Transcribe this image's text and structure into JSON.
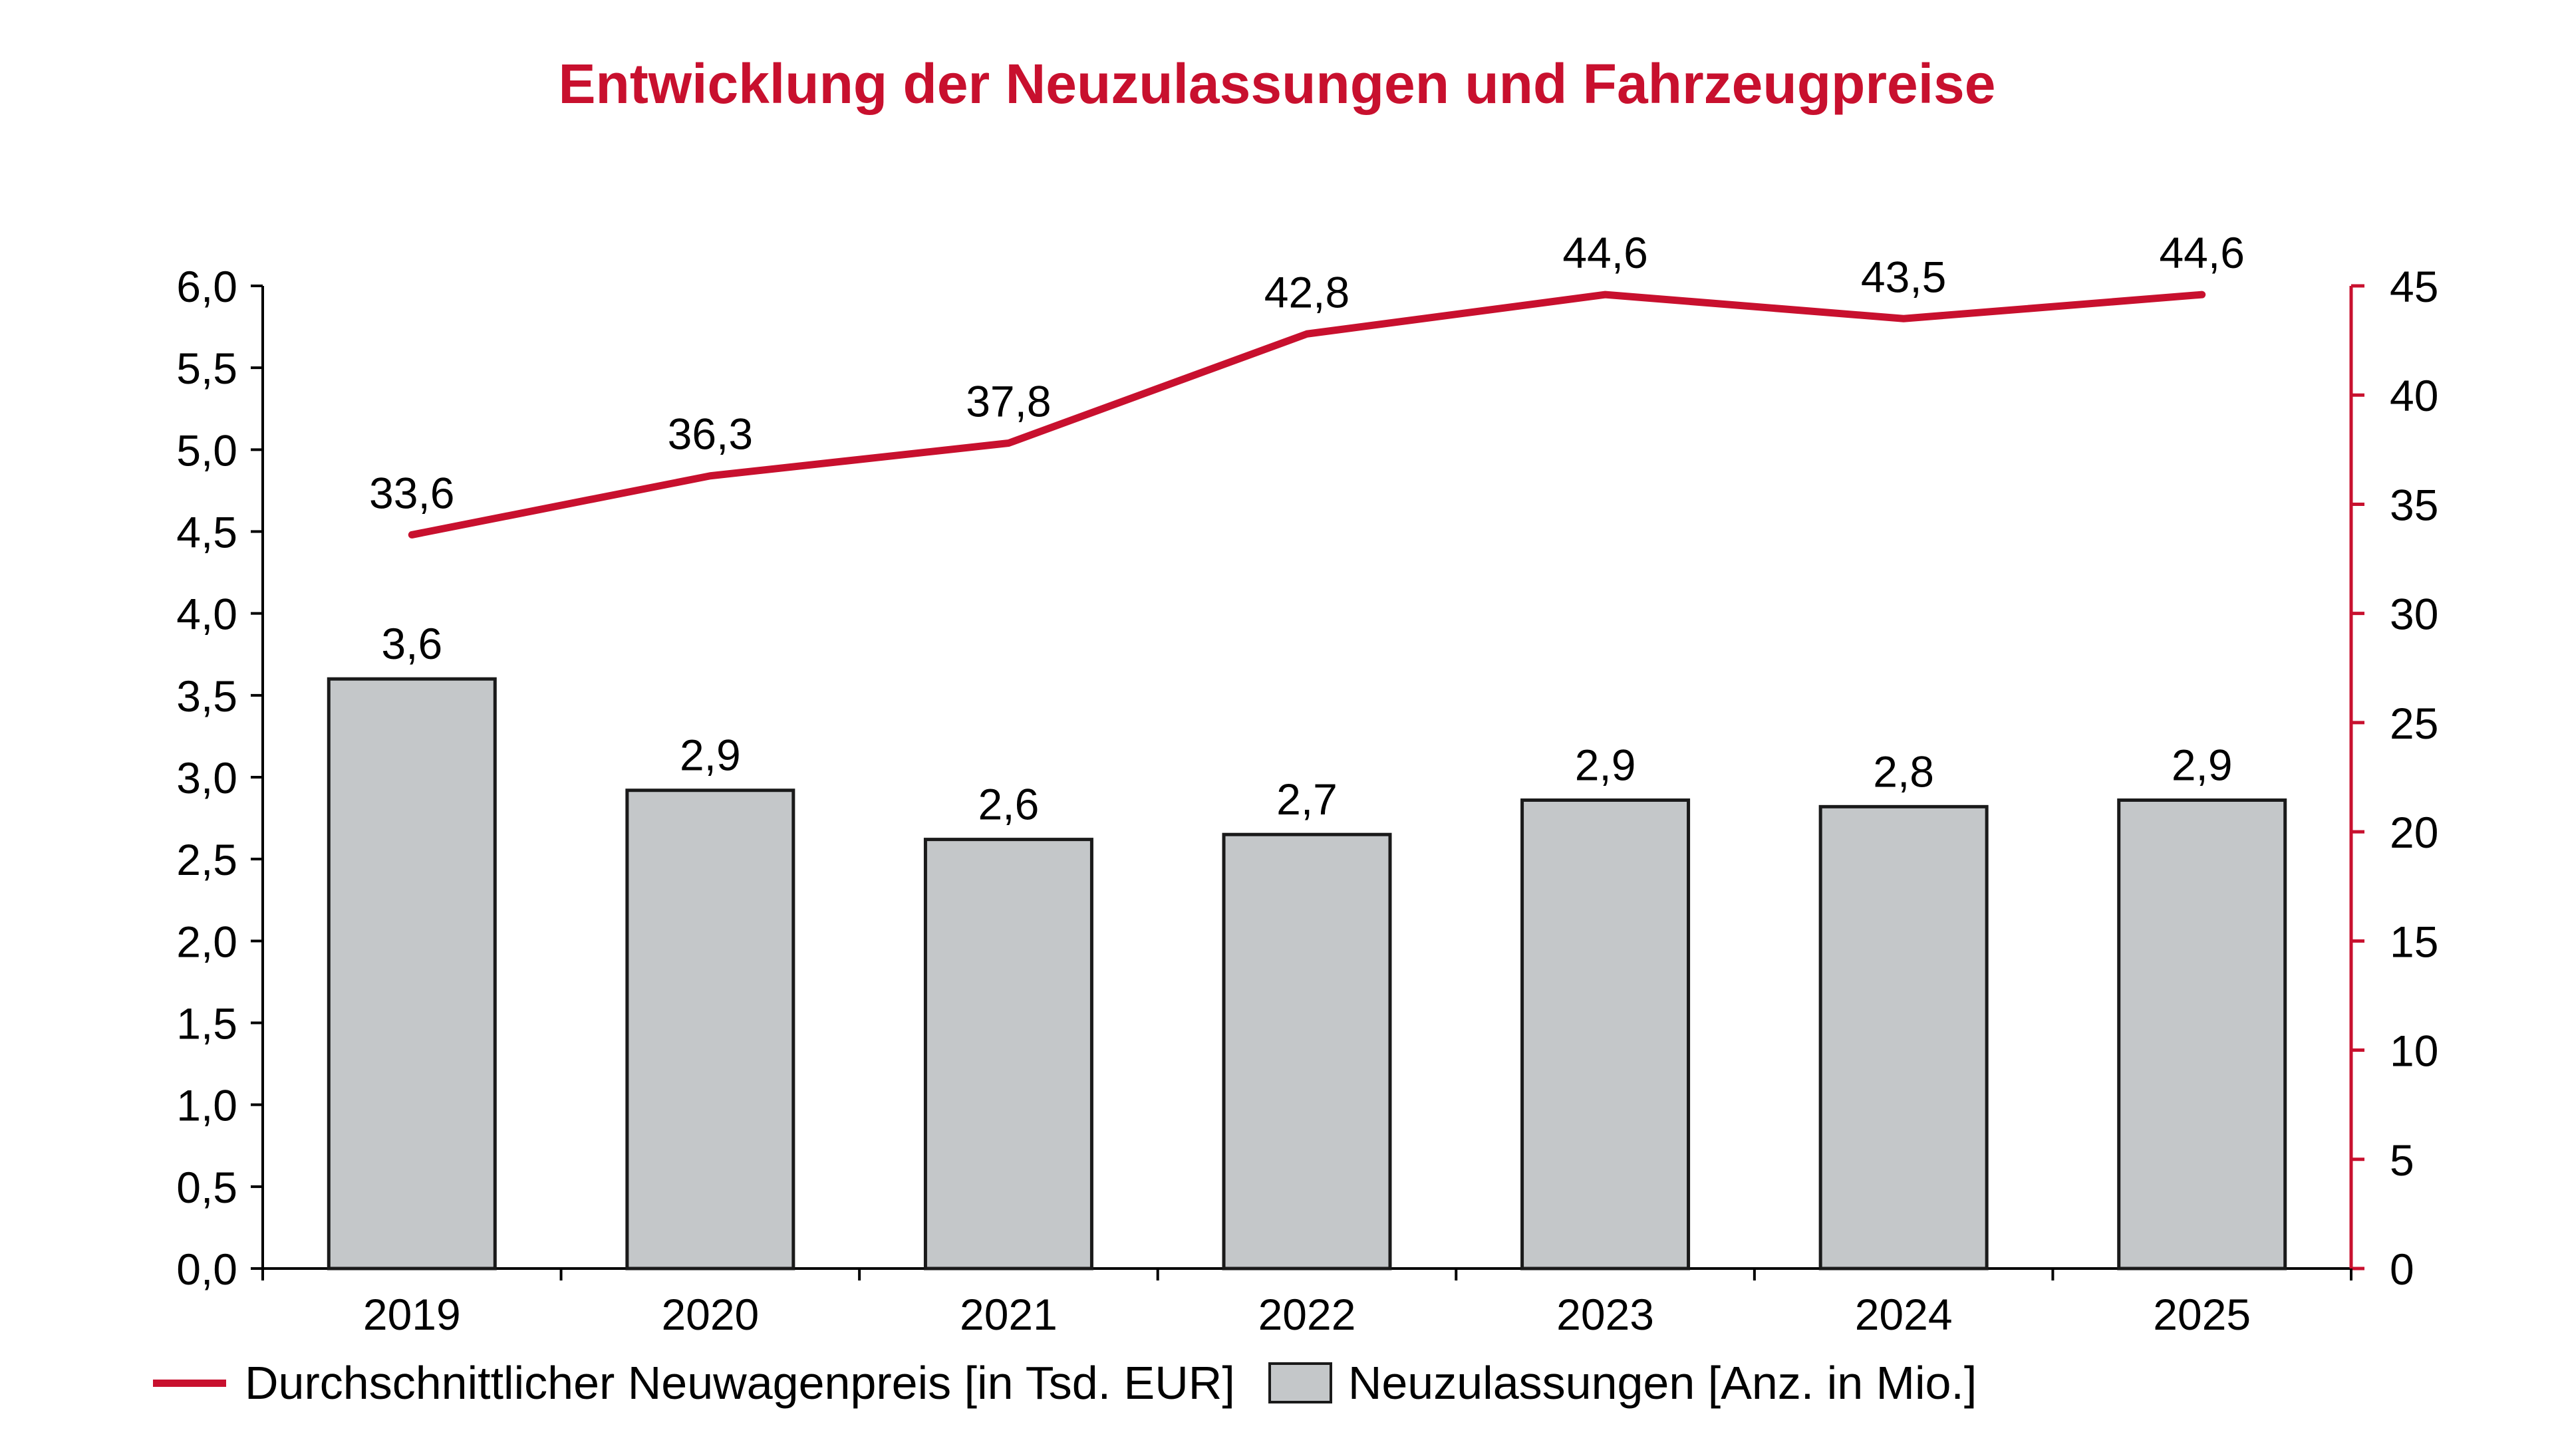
{
  "colors": {
    "accent": "#c8102e",
    "bar_fill": "#c4c7c9",
    "bar_stroke": "#1a1a1a",
    "text": "#000000"
  },
  "chart_data": {
    "type": "bar",
    "title": "Entwicklung der Neuzulassungen und Fahrzeugpreise",
    "categories": [
      "2019",
      "2020",
      "2021",
      "2022",
      "2023",
      "2024",
      "2025"
    ],
    "series": [
      {
        "name": "Neuzulassungen [Anz. in Mio.]",
        "type": "bar",
        "axis": "left",
        "values": [
          3.6,
          2.92,
          2.62,
          2.65,
          2.86,
          2.82,
          2.86
        ],
        "labels": [
          "3,6",
          "2,9",
          "2,6",
          "2,7",
          "2,9",
          "2,8",
          "2,9"
        ]
      },
      {
        "name": "Durchschnittlicher Neuwagenpreis [in Tsd. EUR]",
        "type": "line",
        "axis": "right",
        "values": [
          33.6,
          36.3,
          37.8,
          42.8,
          44.6,
          43.5,
          44.6
        ],
        "labels": [
          "33,6",
          "36,3",
          "37,8",
          "42,8",
          "44,6",
          "43,5",
          "44,6"
        ]
      }
    ],
    "y_left": {
      "lim": [
        0,
        6
      ],
      "ticks": [
        "0,0",
        "0,5",
        "1,0",
        "1,5",
        "2,0",
        "2,5",
        "3,0",
        "3,5",
        "4,0",
        "4,5",
        "5,0",
        "5,5",
        "6,0"
      ]
    },
    "y_right": {
      "lim": [
        0,
        45
      ],
      "ticks": [
        "0",
        "5",
        "10",
        "15",
        "20",
        "25",
        "30",
        "35",
        "40",
        "45"
      ]
    },
    "grid": false,
    "legend_position": "bottom",
    "legend": {
      "line_label": "Durchschnittlicher Neuwagenpreis [in Tsd. EUR]",
      "bar_label": "Neuzulassungen [Anz. in Mio.]"
    }
  }
}
